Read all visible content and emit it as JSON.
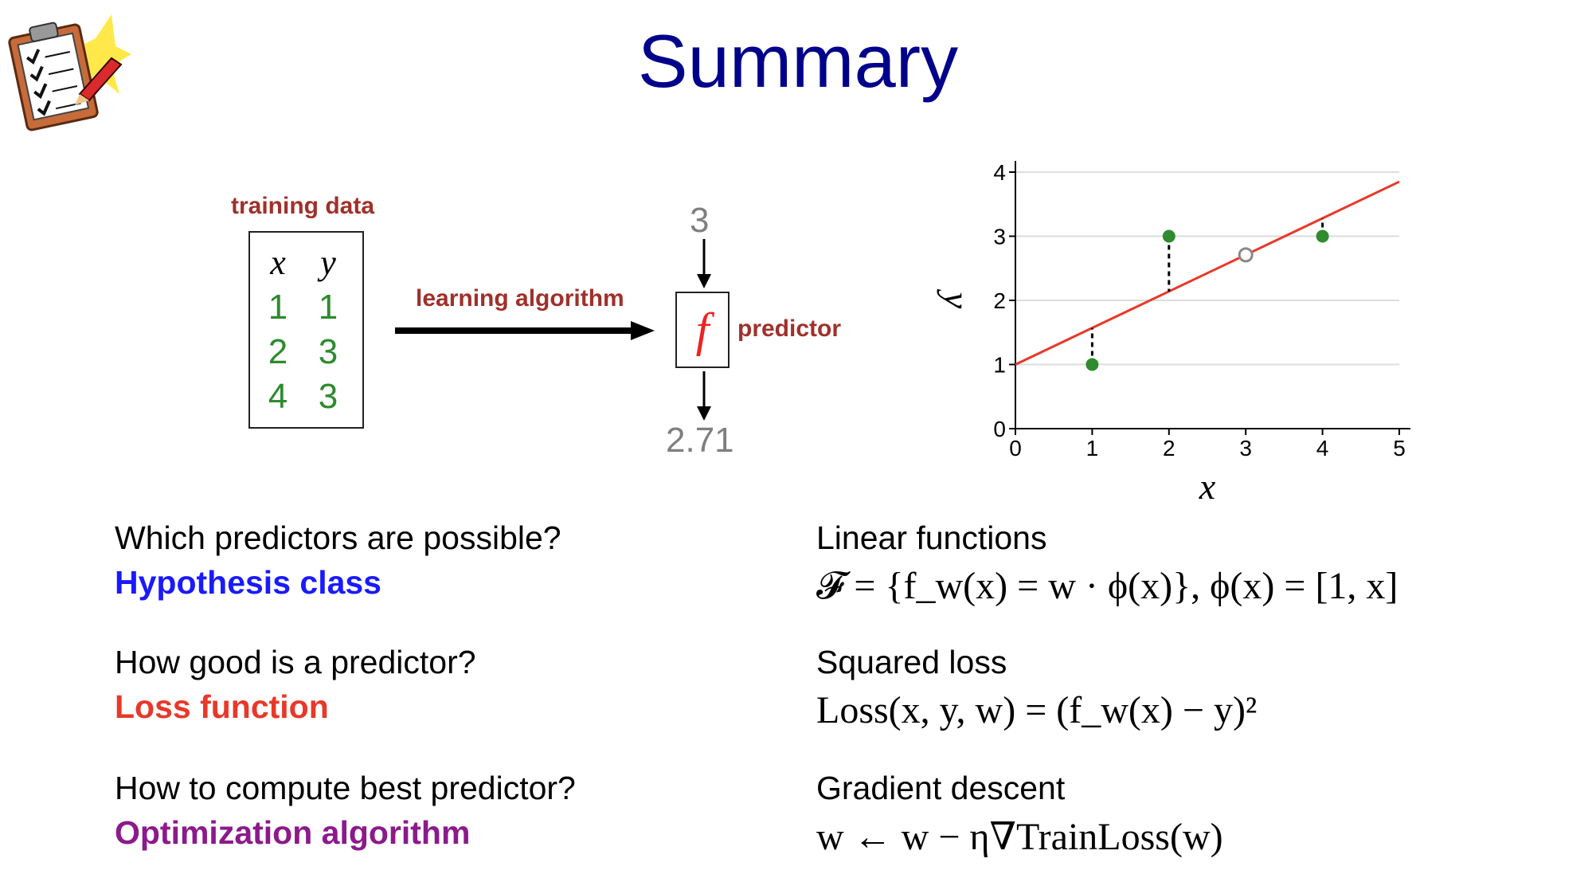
{
  "title": "Summary",
  "icons": {
    "clipboard": "clipboard-checklist-icon"
  },
  "diagram": {
    "training_label": "training data",
    "table": {
      "headers": [
        "x",
        "y"
      ],
      "rows": [
        [
          "1",
          "1"
        ],
        [
          "2",
          "3"
        ],
        [
          "4",
          "3"
        ]
      ]
    },
    "algorithm_label": "learning algorithm",
    "predictor_symbol": "f",
    "predictor_label": "predictor",
    "input_value": "3",
    "output_value": "2.71"
  },
  "chart_data": {
    "type": "scatter",
    "xlabel": "x",
    "ylabel": "y",
    "xlim": [
      0,
      5
    ],
    "ylim": [
      0,
      4
    ],
    "xticks": [
      "0",
      "1",
      "2",
      "3",
      "4",
      "5"
    ],
    "yticks": [
      "0",
      "1",
      "2",
      "3",
      "4"
    ],
    "grid": "horizontal",
    "points": [
      {
        "x": 1,
        "y": 1
      },
      {
        "x": 2,
        "y": 3
      },
      {
        "x": 4,
        "y": 3
      }
    ],
    "prediction_point": {
      "x": 3,
      "y": 2.71
    },
    "fit_line": {
      "intercept": 1.0,
      "slope": 0.57
    },
    "colors": {
      "points": "#2e8b2e",
      "line": "#e8382a",
      "residual": "#000000",
      "prediction": "#888888"
    }
  },
  "summary": {
    "rows": [
      {
        "question": "Which predictors are possible?",
        "answer": "Hypothesis class",
        "answer_color": "#1a1aff",
        "method": "Linear functions",
        "formula": "𝓕 = {f_w(x) = w · ϕ(x)}, ϕ(x) = [1, x]"
      },
      {
        "question": "How good is a predictor?",
        "answer": "Loss function",
        "answer_color": "#e8382a",
        "method": "Squared loss",
        "formula": "Loss(x, y, w) = (f_w(x) − y)²"
      },
      {
        "question": "How to compute best predictor?",
        "answer": "Optimization algorithm",
        "answer_color": "#8b1a8b",
        "method": "Gradient descent",
        "formula": "w ← w − η∇TrainLoss(w)"
      }
    ]
  }
}
